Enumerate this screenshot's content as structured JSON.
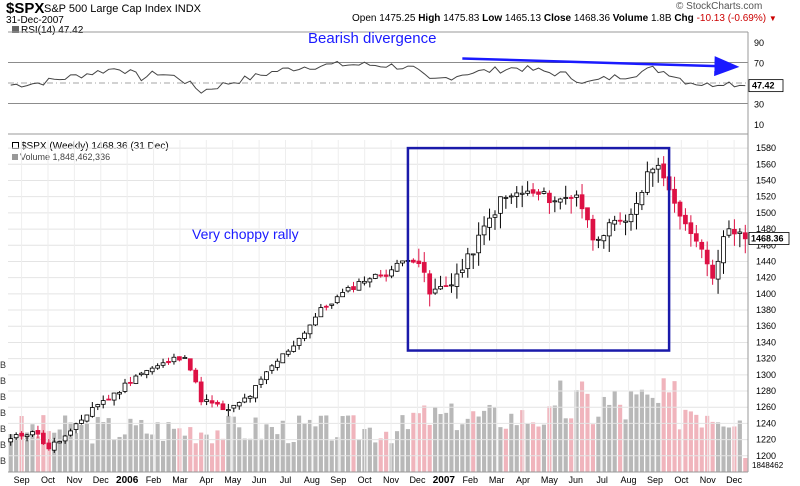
{
  "header": {
    "symbol": "$SPX",
    "name": "S&P 500 Large Cap Index",
    "exchange": "INDX",
    "date": "31-Dec-2007",
    "open_label": "Open",
    "open": "1475.25",
    "high_label": "High",
    "high": "1475.83",
    "low_label": "Low",
    "low": "1465.13",
    "close_label": "Close",
    "close": "1468.36",
    "volume_label": "Volume",
    "volume": "1.8B",
    "chg_label": "Chg",
    "chg": "-10.13 (-0.69%)",
    "brand": "© StockCharts.com"
  },
  "rsi_panel": {
    "label": "RSI(14) 47.42",
    "current_value": "47.42",
    "annotation": "Bearish divergence",
    "ticks": [
      "90",
      "70",
      "50",
      "30",
      "10"
    ]
  },
  "price_panel": {
    "label": "$SPX (Weekly) 1468.36 (31 Dec)",
    "volume_label": "Volume 1,848,462,336",
    "annotation": "Very choppy rally",
    "last_price": "1468.36",
    "last_volume": "1848462",
    "volume_partial_label": "B"
  },
  "colors": {
    "up_candle": "#ffffff",
    "down_candle": "#dd1144",
    "rsi_line": "#444444",
    "annotation": "#1a1aff",
    "volume_up": "#b8b8b8",
    "volume_down": "#f0b4bc"
  },
  "chart_data": {
    "type": "candlestick",
    "timeframe": "weekly",
    "x_tick_labels": [
      "Sep",
      "Oct",
      "Nov",
      "Dec",
      "2006",
      "Feb",
      "Mar",
      "Apr",
      "May",
      "Jun",
      "Jul",
      "Aug",
      "Sep",
      "Oct",
      "Nov",
      "Dec",
      "2007",
      "Feb",
      "Mar",
      "Apr",
      "May",
      "Jun",
      "Jul",
      "Aug",
      "Sep",
      "Oct",
      "Nov",
      "Dec"
    ],
    "price_ticks": [
      1200,
      1220,
      1240,
      1260,
      1280,
      1300,
      1320,
      1340,
      1360,
      1380,
      1400,
      1420,
      1440,
      1460,
      1480,
      1500,
      1520,
      1540,
      1560,
      1580
    ],
    "price_range": [
      1180,
      1590
    ],
    "rsi_ticks": [
      10,
      30,
      50,
      70,
      90
    ],
    "rsi_range": [
      0,
      100
    ],
    "rsi_reference_lines": [
      30,
      70
    ],
    "rsi_midline": 50,
    "close_key": [
      [
        0,
        1220
      ],
      [
        4,
        1232
      ],
      [
        7,
        1210
      ],
      [
        11,
        1228
      ],
      [
        15,
        1260
      ],
      [
        19,
        1275
      ],
      [
        23,
        1300
      ],
      [
        27,
        1310
      ],
      [
        32,
        1325
      ],
      [
        35,
        1270
      ],
      [
        40,
        1255
      ],
      [
        44,
        1275
      ],
      [
        48,
        1310
      ],
      [
        53,
        1345
      ],
      [
        57,
        1380
      ],
      [
        61,
        1400
      ],
      [
        65,
        1418
      ],
      [
        69,
        1425
      ],
      [
        73,
        1445
      ],
      [
        75,
        1440
      ],
      [
        77,
        1400
      ],
      [
        80,
        1410
      ],
      [
        83,
        1430
      ],
      [
        87,
        1480
      ],
      [
        90,
        1515
      ],
      [
        94,
        1525
      ],
      [
        97,
        1522
      ],
      [
        101,
        1515
      ],
      [
        104,
        1525
      ],
      [
        107,
        1470
      ],
      [
        111,
        1485
      ],
      [
        113,
        1485
      ],
      [
        116,
        1528
      ],
      [
        118,
        1560
      ],
      [
        120,
        1550
      ],
      [
        123,
        1490
      ],
      [
        126,
        1470
      ],
      [
        129,
        1425
      ],
      [
        132,
        1485
      ],
      [
        134,
        1475
      ],
      [
        135,
        1468
      ]
    ],
    "rsi_key": [
      [
        0,
        48
      ],
      [
        5,
        50
      ],
      [
        10,
        55
      ],
      [
        15,
        60
      ],
      [
        20,
        65
      ],
      [
        24,
        55
      ],
      [
        27,
        60
      ],
      [
        31,
        55
      ],
      [
        35,
        42
      ],
      [
        40,
        50
      ],
      [
        44,
        55
      ],
      [
        49,
        62
      ],
      [
        54,
        66
      ],
      [
        60,
        68
      ],
      [
        65,
        68
      ],
      [
        70,
        67
      ],
      [
        74,
        64
      ],
      [
        77,
        52
      ],
      [
        80,
        55
      ],
      [
        84,
        60
      ],
      [
        88,
        62
      ],
      [
        93,
        65
      ],
      [
        97,
        62
      ],
      [
        102,
        58
      ],
      [
        106,
        50
      ],
      [
        110,
        55
      ],
      [
        114,
        58
      ],
      [
        118,
        64
      ],
      [
        121,
        60
      ],
      [
        124,
        52
      ],
      [
        128,
        48
      ],
      [
        131,
        51
      ],
      [
        135,
        47.42
      ]
    ],
    "annotations": [
      {
        "text": "Bearish divergence",
        "type": "arrow",
        "from": [
          83,
          74
        ],
        "to": [
          133,
          66
        ]
      },
      {
        "text": "Very choppy rally",
        "type": "label"
      },
      {
        "type": "box",
        "x_range": [
          73,
          121
        ],
        "y_range": [
          1330,
          1580
        ]
      }
    ]
  }
}
